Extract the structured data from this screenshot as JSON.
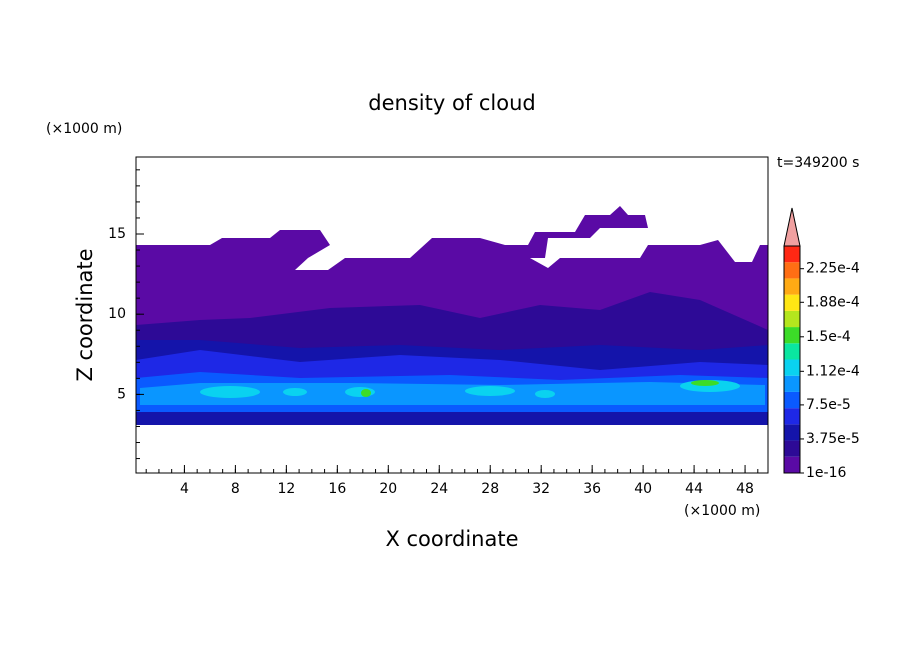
{
  "chart_data": {
    "type": "contour",
    "title": "density of cloud",
    "xlabel": "X coordinate",
    "ylabel": "Z coordinate",
    "xunit": "(×1000 m)",
    "yunit": "(×1000 m)",
    "annotation": "t=349200 s",
    "xlim": [
      0.2,
      49.8
    ],
    "xticks": [
      4,
      8,
      12,
      16,
      20,
      24,
      28,
      32,
      36,
      40,
      44,
      48
    ],
    "ylim": [
      0.1,
      19.8
    ],
    "yticks": [
      5,
      10,
      15
    ],
    "colorbar_lim": [
      1e-16,
      0.00025
    ],
    "colorbar_ticks": [
      {
        "value": 1e-16,
        "label": "1e-16"
      },
      {
        "value": 3.75e-05,
        "label": "3.75e-5"
      },
      {
        "value": 7.5e-05,
        "label": "7.5e-5"
      },
      {
        "value": 0.000112,
        "label": "1.12e-4"
      },
      {
        "value": 0.00015,
        "label": "1.5e-4"
      },
      {
        "value": 0.000188,
        "label": "1.88e-4"
      },
      {
        "value": 0.000225,
        "label": "2.25e-4"
      }
    ],
    "colors": [
      "#5a0aa5",
      "#2d0a96",
      "#1414aa",
      "#1e28e6",
      "#0a5aff",
      "#0a96ff",
      "#0ad2f0",
      "#0ae6a0",
      "#3cdc28",
      "#b4e61e",
      "#ffe614",
      "#ffaa14",
      "#ff6e14",
      "#ff2814"
    ],
    "extend_color": "#f0a0a0"
  }
}
